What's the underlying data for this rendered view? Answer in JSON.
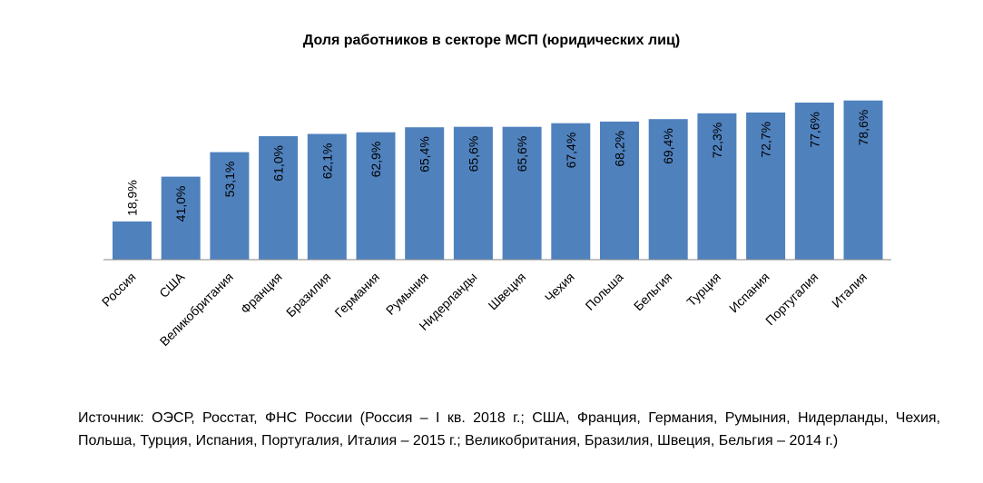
{
  "chart_data": {
    "type": "bar",
    "title": "Доля работников в секторе МСП (юридических лиц)",
    "categories": [
      "Россия",
      "США",
      "Великобритания",
      "Франция",
      "Бразилия",
      "Германия",
      "Румыния",
      "Нидерланды",
      "Швеция",
      "Чехия",
      "Польша",
      "Бельгия",
      "Турция",
      "Испания",
      "Португалия",
      "Италия"
    ],
    "values": [
      18.9,
      41.0,
      53.1,
      61.0,
      62.1,
      62.9,
      65.4,
      65.6,
      65.6,
      67.4,
      68.2,
      69.4,
      72.3,
      72.7,
      77.6,
      78.6
    ],
    "value_labels": [
      "18,9%",
      "41,0%",
      "53,1%",
      "61,0%",
      "62,1%",
      "62,9%",
      "65,4%",
      "65,6%",
      "65,6%",
      "67,4%",
      "68,2%",
      "69,4%",
      "72,3%",
      "72,7%",
      "77,6%",
      "78,6%"
    ],
    "xlabel": "",
    "ylabel": "",
    "ylim": [
      0,
      80
    ],
    "grid": false,
    "legend": "none",
    "bar_color": "#4f81bd"
  },
  "source_note": "Источник: ОЭСР, Росстат, ФНС России (Россия – I кв. 2018 г.; США, Франция, Германия, Румыния, Нидерланды, Чехия, Польша, Турция, Испания, Португалия, Италия – 2015 г.; Великобритания, Бразилия, Швеция, Бельгия – 2014 г.)"
}
